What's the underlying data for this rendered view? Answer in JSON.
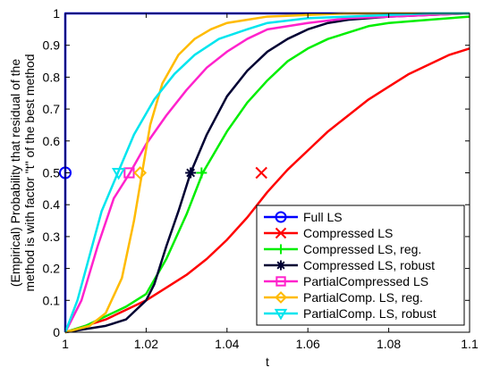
{
  "chart_data": {
    "type": "line",
    "title": "",
    "xlabel": "t",
    "ylabel_lines": [
      "(Empirical) Probability that residual of the",
      "method is with factor \"t\" of the best method"
    ],
    "xlim": [
      1,
      1.1
    ],
    "ylim": [
      0,
      1
    ],
    "xticks": [
      1,
      1.02,
      1.04,
      1.06,
      1.08,
      1.1
    ],
    "xtick_labels": [
      "1",
      "1.02",
      "1.04",
      "1.06",
      "1.08",
      "1.1"
    ],
    "yticks": [
      0,
      0.1,
      0.2,
      0.3,
      0.4,
      0.5,
      0.6,
      0.7,
      0.8,
      0.9,
      1
    ],
    "ytick_labels": [
      "0",
      "0.1",
      "0.2",
      "0.3",
      "0.4",
      "0.5",
      "0.6",
      "0.7",
      "0.8",
      "0.9",
      "1"
    ],
    "grid": false,
    "legend_position": "bottom-right",
    "series": [
      {
        "name": "Full LS",
        "color": "#0000ff",
        "marker": "circle",
        "x": [
          1.0,
          1.0,
          1.0006,
          1.1
        ],
        "y": [
          0.0,
          1.0,
          1.0,
          1.0
        ],
        "marker_at": [
          1.0,
          0.5
        ]
      },
      {
        "name": "Compressed LS",
        "color": "#ff0000",
        "marker": "x",
        "x": [
          1.0,
          1.005,
          1.01,
          1.015,
          1.02,
          1.025,
          1.03,
          1.035,
          1.04,
          1.045,
          1.05,
          1.055,
          1.06,
          1.065,
          1.07,
          1.075,
          1.08,
          1.085,
          1.09,
          1.095,
          1.1
        ],
        "y": [
          0.0,
          0.02,
          0.04,
          0.07,
          0.1,
          0.14,
          0.18,
          0.23,
          0.29,
          0.36,
          0.44,
          0.51,
          0.57,
          0.63,
          0.68,
          0.73,
          0.77,
          0.81,
          0.84,
          0.87,
          0.89
        ],
        "marker_at": [
          1.0485,
          0.5
        ]
      },
      {
        "name": "Compressed LS, reg.",
        "color": "#00ee00",
        "marker": "plus",
        "x": [
          1.0,
          1.005,
          1.01,
          1.015,
          1.02,
          1.025,
          1.03,
          1.034,
          1.04,
          1.045,
          1.05,
          1.055,
          1.06,
          1.065,
          1.07,
          1.075,
          1.08,
          1.09,
          1.1
        ],
        "y": [
          0.0,
          0.02,
          0.05,
          0.08,
          0.12,
          0.23,
          0.37,
          0.5,
          0.63,
          0.72,
          0.79,
          0.85,
          0.89,
          0.92,
          0.94,
          0.96,
          0.97,
          0.98,
          0.99
        ],
        "marker_at": [
          1.0337,
          0.5
        ]
      },
      {
        "name": "Compressed LS, robust",
        "color": "#000033",
        "marker": "asterisk",
        "x": [
          1.0,
          1.01,
          1.015,
          1.02,
          1.022,
          1.025,
          1.028,
          1.031,
          1.035,
          1.04,
          1.045,
          1.05,
          1.055,
          1.06,
          1.065,
          1.07,
          1.08,
          1.09,
          1.1
        ],
        "y": [
          0.0,
          0.02,
          0.04,
          0.1,
          0.15,
          0.27,
          0.38,
          0.5,
          0.62,
          0.74,
          0.82,
          0.88,
          0.92,
          0.95,
          0.97,
          0.98,
          0.99,
          0.995,
          1.0
        ],
        "marker_at": [
          1.031,
          0.5
        ]
      },
      {
        "name": "PartialCompressed LS",
        "color": "#ff22cc",
        "marker": "square",
        "x": [
          1.0,
          1.004,
          1.008,
          1.012,
          1.016,
          1.02,
          1.025,
          1.03,
          1.035,
          1.04,
          1.045,
          1.05,
          1.06,
          1.07,
          1.08,
          1.09,
          1.1
        ],
        "y": [
          0.0,
          0.1,
          0.27,
          0.42,
          0.5,
          0.59,
          0.68,
          0.76,
          0.83,
          0.88,
          0.92,
          0.95,
          0.97,
          0.985,
          0.99,
          0.995,
          1.0
        ],
        "marker_at": [
          1.0158,
          0.5
        ]
      },
      {
        "name": "PartialComp. LS, reg.",
        "color": "#ffbb00",
        "marker": "diamond",
        "x": [
          1.0,
          1.006,
          1.01,
          1.014,
          1.017,
          1.019,
          1.021,
          1.024,
          1.028,
          1.032,
          1.036,
          1.04,
          1.045,
          1.05,
          1.06,
          1.07,
          1.08,
          1.1
        ],
        "y": [
          0.0,
          0.02,
          0.06,
          0.17,
          0.35,
          0.5,
          0.65,
          0.78,
          0.87,
          0.92,
          0.95,
          0.97,
          0.98,
          0.99,
          0.995,
          1.0,
          1.0,
          1.0
        ],
        "marker_at": [
          1.0185,
          0.5
        ]
      },
      {
        "name": "PartialComp. LS, robust",
        "color": "#00e5ee",
        "marker": "triangle-down",
        "x": [
          1.0,
          1.003,
          1.006,
          1.009,
          1.013,
          1.017,
          1.022,
          1.027,
          1.032,
          1.038,
          1.045,
          1.05,
          1.06,
          1.07,
          1.08,
          1.09,
          1.1
        ],
        "y": [
          0.0,
          0.1,
          0.24,
          0.38,
          0.5,
          0.62,
          0.73,
          0.81,
          0.87,
          0.92,
          0.95,
          0.97,
          0.985,
          0.99,
          0.995,
          1.0,
          1.0
        ],
        "marker_at": [
          1.0132,
          0.5
        ]
      }
    ]
  }
}
